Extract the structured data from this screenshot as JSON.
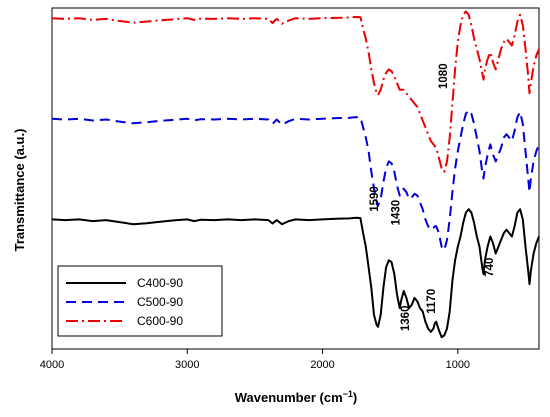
{
  "chart_data": {
    "type": "line",
    "title": "",
    "xlabel": "Wavenumber (cm",
    "xlabel_sup": "−1",
    "xlabel_close": ")",
    "ylabel": "Transmittance (a.u.)",
    "xlim": [
      4000,
      400
    ],
    "ylim": [
      0,
      100
    ],
    "x_reversed": true,
    "xticks": [
      4000,
      3000,
      2000,
      1000
    ],
    "y_tick_labels": false,
    "grid": false,
    "legend_position": "bottom-left",
    "series": [
      {
        "name": "C400-90",
        "color": "#000000",
        "dash": "solid",
        "points": [
          [
            4000,
            38
          ],
          [
            3900,
            37.8
          ],
          [
            3800,
            38
          ],
          [
            3700,
            37.5
          ],
          [
            3600,
            37.8
          ],
          [
            3500,
            37.2
          ],
          [
            3400,
            36.6
          ],
          [
            3300,
            36.9
          ],
          [
            3200,
            37.3
          ],
          [
            3100,
            37.7
          ],
          [
            3000,
            38
          ],
          [
            2950,
            37.5
          ],
          [
            2900,
            37.9
          ],
          [
            2800,
            37.8
          ],
          [
            2700,
            38
          ],
          [
            2600,
            37.8
          ],
          [
            2500,
            38
          ],
          [
            2400,
            37.8
          ],
          [
            2370,
            36.8
          ],
          [
            2340,
            37.8
          ],
          [
            2300,
            36.6
          ],
          [
            2250,
            37.5
          ],
          [
            2200,
            38
          ],
          [
            2100,
            37.8
          ],
          [
            2000,
            38
          ],
          [
            1900,
            38.2
          ],
          [
            1800,
            38.3
          ],
          [
            1750,
            38.5
          ],
          [
            1720,
            38.4
          ],
          [
            1700,
            34
          ],
          [
            1680,
            30
          ],
          [
            1660,
            24
          ],
          [
            1640,
            18
          ],
          [
            1620,
            10
          ],
          [
            1600,
            7
          ],
          [
            1590,
            6.5
          ],
          [
            1570,
            10
          ],
          [
            1550,
            18
          ],
          [
            1530,
            24
          ],
          [
            1510,
            26
          ],
          [
            1490,
            25.5
          ],
          [
            1470,
            22
          ],
          [
            1450,
            16
          ],
          [
            1430,
            12
          ],
          [
            1420,
            14
          ],
          [
            1400,
            17
          ],
          [
            1380,
            15
          ],
          [
            1360,
            12
          ],
          [
            1340,
            13
          ],
          [
            1320,
            15
          ],
          [
            1300,
            14
          ],
          [
            1280,
            12
          ],
          [
            1260,
            11
          ],
          [
            1240,
            8
          ],
          [
            1220,
            6
          ],
          [
            1200,
            5
          ],
          [
            1180,
            6
          ],
          [
            1170,
            7.5
          ],
          [
            1160,
            8
          ],
          [
            1140,
            5.5
          ],
          [
            1120,
            3.5
          ],
          [
            1100,
            4
          ],
          [
            1080,
            6
          ],
          [
            1060,
            11
          ],
          [
            1040,
            20
          ],
          [
            1020,
            26
          ],
          [
            1000,
            30
          ],
          [
            980,
            33
          ],
          [
            960,
            37
          ],
          [
            940,
            40
          ],
          [
            920,
            41
          ],
          [
            900,
            40
          ],
          [
            880,
            37
          ],
          [
            860,
            33
          ],
          [
            840,
            30
          ],
          [
            820,
            24
          ],
          [
            810,
            22
          ],
          [
            800,
            26
          ],
          [
            780,
            30
          ],
          [
            760,
            33
          ],
          [
            740,
            31
          ],
          [
            720,
            28
          ],
          [
            700,
            30
          ],
          [
            680,
            32
          ],
          [
            660,
            34
          ],
          [
            640,
            35
          ],
          [
            620,
            34
          ],
          [
            600,
            33
          ],
          [
            580,
            36
          ],
          [
            560,
            40
          ],
          [
            540,
            41
          ],
          [
            520,
            38
          ],
          [
            500,
            30
          ],
          [
            480,
            23
          ],
          [
            470,
            19
          ],
          [
            460,
            23
          ],
          [
            440,
            28
          ],
          [
            420,
            31
          ],
          [
            400,
            33
          ]
        ]
      },
      {
        "name": "C500-90",
        "color": "#0000dd",
        "dash": "10,6",
        "points": [
          [
            4000,
            67.5
          ],
          [
            3900,
            67.3
          ],
          [
            3800,
            67.5
          ],
          [
            3700,
            67
          ],
          [
            3600,
            67.3
          ],
          [
            3500,
            66.7
          ],
          [
            3400,
            66.2
          ],
          [
            3300,
            66.5
          ],
          [
            3200,
            66.9
          ],
          [
            3100,
            67.2
          ],
          [
            3000,
            67.5
          ],
          [
            2950,
            67
          ],
          [
            2900,
            67.4
          ],
          [
            2800,
            67.3
          ],
          [
            2700,
            67.5
          ],
          [
            2600,
            67.3
          ],
          [
            2500,
            67.5
          ],
          [
            2400,
            67.3
          ],
          [
            2370,
            66
          ],
          [
            2340,
            67.3
          ],
          [
            2300,
            65.8
          ],
          [
            2250,
            66.8
          ],
          [
            2200,
            67.5
          ],
          [
            2100,
            67.3
          ],
          [
            2000,
            67.5
          ],
          [
            1900,
            67.7
          ],
          [
            1800,
            67.8
          ],
          [
            1750,
            68
          ],
          [
            1720,
            67.9
          ],
          [
            1700,
            65
          ],
          [
            1680,
            62
          ],
          [
            1660,
            58
          ],
          [
            1640,
            52
          ],
          [
            1620,
            47
          ],
          [
            1600,
            43
          ],
          [
            1590,
            42
          ],
          [
            1570,
            44
          ],
          [
            1550,
            49
          ],
          [
            1530,
            53
          ],
          [
            1510,
            55
          ],
          [
            1490,
            54.5
          ],
          [
            1470,
            52
          ],
          [
            1450,
            48
          ],
          [
            1430,
            45
          ],
          [
            1420,
            46
          ],
          [
            1400,
            47
          ],
          [
            1380,
            46
          ],
          [
            1360,
            44
          ],
          [
            1340,
            44.5
          ],
          [
            1320,
            45.5
          ],
          [
            1300,
            45
          ],
          [
            1280,
            43
          ],
          [
            1260,
            41
          ],
          [
            1240,
            38
          ],
          [
            1220,
            36
          ],
          [
            1200,
            35
          ],
          [
            1180,
            35.5
          ],
          [
            1170,
            36
          ],
          [
            1160,
            36
          ],
          [
            1140,
            34
          ],
          [
            1120,
            30
          ],
          [
            1100,
            29
          ],
          [
            1080,
            32
          ],
          [
            1060,
            38
          ],
          [
            1040,
            46
          ],
          [
            1020,
            53
          ],
          [
            1000,
            58
          ],
          [
            980,
            62
          ],
          [
            960,
            66
          ],
          [
            940,
            69
          ],
          [
            920,
            70
          ],
          [
            900,
            69
          ],
          [
            880,
            66
          ],
          [
            860,
            62
          ],
          [
            840,
            58
          ],
          [
            820,
            52
          ],
          [
            810,
            50
          ],
          [
            800,
            53
          ],
          [
            780,
            57
          ],
          [
            760,
            60
          ],
          [
            740,
            57
          ],
          [
            720,
            55
          ],
          [
            700,
            57
          ],
          [
            680,
            59
          ],
          [
            660,
            62
          ],
          [
            640,
            63
          ],
          [
            620,
            62
          ],
          [
            600,
            61
          ],
          [
            580,
            64
          ],
          [
            560,
            68
          ],
          [
            540,
            69.5
          ],
          [
            520,
            66
          ],
          [
            500,
            58
          ],
          [
            480,
            50
          ],
          [
            470,
            46
          ],
          [
            460,
            50
          ],
          [
            440,
            55
          ],
          [
            420,
            58
          ],
          [
            400,
            60
          ]
        ]
      },
      {
        "name": "C600-90",
        "color": "#ee0000",
        "dash": "12,4,2,4",
        "points": [
          [
            4000,
            97
          ],
          [
            3900,
            96.8
          ],
          [
            3800,
            97
          ],
          [
            3700,
            96.5
          ],
          [
            3600,
            96.8
          ],
          [
            3500,
            96.2
          ],
          [
            3400,
            95.7
          ],
          [
            3300,
            96
          ],
          [
            3200,
            96.4
          ],
          [
            3100,
            96.7
          ],
          [
            3000,
            97
          ],
          [
            2950,
            96.5
          ],
          [
            2900,
            96.9
          ],
          [
            2800,
            96.8
          ],
          [
            2700,
            97
          ],
          [
            2600,
            96.8
          ],
          [
            2500,
            97
          ],
          [
            2400,
            96.8
          ],
          [
            2370,
            95.6
          ],
          [
            2340,
            96.8
          ],
          [
            2300,
            95.4
          ],
          [
            2250,
            96.3
          ],
          [
            2200,
            97
          ],
          [
            2100,
            96.8
          ],
          [
            2000,
            97
          ],
          [
            1900,
            97.1
          ],
          [
            1800,
            97.2
          ],
          [
            1750,
            97.4
          ],
          [
            1720,
            97.3
          ],
          [
            1700,
            94
          ],
          [
            1680,
            91
          ],
          [
            1660,
            87
          ],
          [
            1640,
            82
          ],
          [
            1620,
            78
          ],
          [
            1600,
            75
          ],
          [
            1590,
            74.5
          ],
          [
            1570,
            76
          ],
          [
            1550,
            79
          ],
          [
            1530,
            81
          ],
          [
            1510,
            82
          ],
          [
            1490,
            81.5
          ],
          [
            1470,
            80
          ],
          [
            1450,
            78
          ],
          [
            1430,
            76
          ],
          [
            1420,
            76
          ],
          [
            1400,
            76
          ],
          [
            1380,
            75
          ],
          [
            1360,
            74
          ],
          [
            1340,
            73
          ],
          [
            1320,
            72
          ],
          [
            1300,
            71
          ],
          [
            1280,
            69
          ],
          [
            1260,
            67
          ],
          [
            1240,
            65
          ],
          [
            1220,
            63
          ],
          [
            1200,
            61
          ],
          [
            1180,
            60
          ],
          [
            1170,
            59.5
          ],
          [
            1160,
            59
          ],
          [
            1140,
            56
          ],
          [
            1120,
            53
          ],
          [
            1100,
            52
          ],
          [
            1080,
            55
          ],
          [
            1060,
            62
          ],
          [
            1040,
            72
          ],
          [
            1020,
            82
          ],
          [
            1000,
            90
          ],
          [
            980,
            95
          ],
          [
            960,
            98
          ],
          [
            940,
            99
          ],
          [
            920,
            98
          ],
          [
            900,
            95
          ],
          [
            880,
            91
          ],
          [
            860,
            88
          ],
          [
            840,
            85
          ],
          [
            820,
            81
          ],
          [
            810,
            79
          ],
          [
            800,
            82
          ],
          [
            780,
            85
          ],
          [
            760,
            87
          ],
          [
            740,
            84
          ],
          [
            720,
            82
          ],
          [
            700,
            85
          ],
          [
            680,
            88
          ],
          [
            660,
            90
          ],
          [
            640,
            91
          ],
          [
            620,
            90
          ],
          [
            600,
            89
          ],
          [
            580,
            92
          ],
          [
            560,
            96
          ],
          [
            540,
            98
          ],
          [
            520,
            95
          ],
          [
            500,
            88
          ],
          [
            480,
            80
          ],
          [
            470,
            75
          ],
          [
            460,
            78
          ],
          [
            440,
            83
          ],
          [
            420,
            86
          ],
          [
            400,
            88
          ]
        ]
      }
    ],
    "annotations": [
      {
        "text": "1590",
        "x": 1590,
        "y": 44,
        "rotate": -90
      },
      {
        "text": "1430",
        "x": 1430,
        "y": 40,
        "rotate": -90
      },
      {
        "text": "1360",
        "x": 1360,
        "y": 9,
        "rotate": -90
      },
      {
        "text": "1170",
        "x": 1170,
        "y": 14,
        "rotate": -90
      },
      {
        "text": "1080",
        "x": 1080,
        "y": 80,
        "rotate": -90
      },
      {
        "text": "740",
        "x": 740,
        "y": 24,
        "rotate": -90
      }
    ]
  }
}
